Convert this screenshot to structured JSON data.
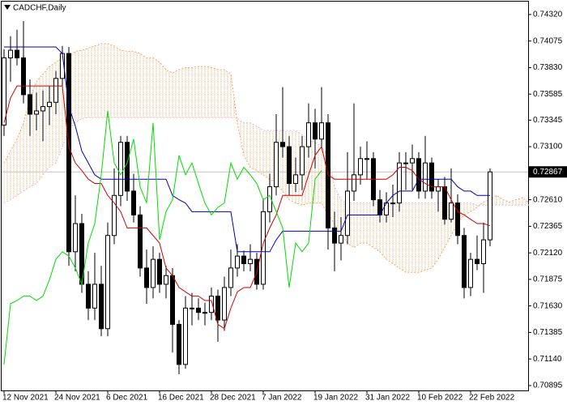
{
  "chart_data": {
    "type": "candlestick",
    "title": "CADCHF,Daily",
    "categories": [
      "12 Nov 2021",
      null,
      null,
      null,
      null,
      null,
      null,
      null,
      "24 Nov 2021",
      null,
      null,
      null,
      null,
      null,
      null,
      null,
      "6 Dec 2021",
      null,
      null,
      null,
      null,
      null,
      null,
      null,
      "16 Dec 2021",
      null,
      null,
      null,
      null,
      null,
      null,
      null,
      "28 Dec 2021",
      null,
      null,
      null,
      null,
      null,
      null,
      null,
      "7 Jan 2022",
      null,
      null,
      null,
      null,
      null,
      null,
      null,
      "19 Jan 2022",
      null,
      null,
      null,
      null,
      null,
      null,
      null,
      "31 Jan 2022",
      null,
      null,
      null,
      null,
      null,
      null,
      null,
      "10 Feb 2022",
      null,
      null,
      null,
      null,
      null,
      null,
      null,
      "22 Feb 2022",
      null,
      null,
      null,
      null,
      null,
      null,
      null,
      null,
      null
    ],
    "open": [
      0.733,
      0.7392,
      0.7399,
      0.7392,
      0.7358,
      0.734,
      0.7343,
      0.7347,
      0.7351,
      0.7373,
      0.7396,
      0.7213,
      0.7239,
      0.7183,
      0.7161,
      0.7183,
      0.7142,
      0.7228,
      0.7265,
      0.7314,
      0.7269,
      0.7247,
      0.7198,
      0.718,
      0.7206,
      0.7183,
      0.7191,
      0.7146,
      0.7109,
      0.7161,
      0.7161,
      0.7157,
      0.7157,
      0.7172,
      0.715,
      0.718,
      0.7198,
      0.7209,
      0.7202,
      0.7206,
      0.7183,
      0.725,
      0.7273,
      0.7314,
      0.731,
      0.7276,
      0.7284,
      0.731,
      0.7332,
      0.7317,
      0.7332,
      0.7235,
      0.7221,
      0.7228,
      0.7269,
      0.7284,
      0.7299,
      0.7299,
      0.7261,
      0.7247,
      0.7258,
      0.7258,
      0.7295,
      0.7295,
      0.7299,
      0.7269,
      0.7295,
      0.7269,
      0.7273,
      0.7243,
      0.7258,
      0.7228,
      0.718,
      0.7206,
      0.7202,
      0.7224,
      null,
      null,
      null,
      null,
      null,
      null
    ],
    "high": [
      0.74,
      0.7412,
      0.7418,
      0.7426,
      0.7372,
      0.736,
      0.7362,
      0.7366,
      0.738,
      0.7403,
      0.7402,
      0.7265,
      0.7248,
      0.7195,
      0.7212,
      0.72,
      0.724,
      0.729,
      0.732,
      0.732,
      0.7285,
      0.7255,
      0.7215,
      0.7218,
      0.7212,
      0.72,
      0.7198,
      0.715,
      0.7172,
      0.7175,
      0.717,
      0.7166,
      0.718,
      0.7178,
      0.719,
      0.7215,
      0.722,
      0.7214,
      0.722,
      0.7212,
      0.7262,
      0.7285,
      0.734,
      0.7365,
      0.732,
      0.73,
      0.732,
      0.735,
      0.7345,
      0.7365,
      0.734,
      0.725,
      0.7245,
      0.7305,
      0.735,
      0.731,
      0.7315,
      0.7305,
      0.727,
      0.7268,
      0.7275,
      0.7305,
      0.7305,
      0.7312,
      0.7305,
      0.732,
      0.73,
      0.728,
      0.7282,
      0.729,
      0.7266,
      0.7235,
      0.7212,
      0.7228,
      0.724,
      0.729,
      null,
      null,
      null,
      null,
      null,
      null
    ],
    "low": [
      0.732,
      0.737,
      0.7385,
      0.735,
      0.732,
      0.7325,
      0.7315,
      0.733,
      0.734,
      0.7365,
      0.72,
      0.7195,
      0.7175,
      0.715,
      0.715,
      0.7135,
      0.7135,
      0.722,
      0.7255,
      0.726,
      0.724,
      0.719,
      0.7165,
      0.717,
      0.7175,
      0.717,
      0.712,
      0.71,
      0.7105,
      0.7145,
      0.715,
      0.7145,
      0.715,
      0.713,
      0.714,
      0.7172,
      0.719,
      0.7195,
      0.7195,
      0.7178,
      0.7178,
      0.724,
      0.7265,
      0.73,
      0.7265,
      0.7268,
      0.727,
      0.73,
      0.729,
      0.731,
      0.7215,
      0.7195,
      0.7205,
      0.722,
      0.726,
      0.7275,
      0.728,
      0.7255,
      0.724,
      0.724,
      0.7245,
      0.725,
      0.727,
      0.727,
      0.7262,
      0.7262,
      0.7262,
      0.725,
      0.7238,
      0.724,
      0.722,
      0.717,
      0.7172,
      0.7196,
      0.7175,
      0.7218,
      null,
      null,
      null,
      null,
      null,
      null
    ],
    "close": [
      0.7392,
      0.7399,
      0.7392,
      0.7358,
      0.734,
      0.7343,
      0.7347,
      0.7351,
      0.7373,
      0.7396,
      0.7213,
      0.7239,
      0.7183,
      0.7161,
      0.7183,
      0.7142,
      0.7228,
      0.7265,
      0.7314,
      0.7269,
      0.7247,
      0.7198,
      0.718,
      0.7206,
      0.7183,
      0.7191,
      0.7146,
      0.7109,
      0.7161,
      0.7161,
      0.7157,
      0.7157,
      0.7172,
      0.715,
      0.718,
      0.7198,
      0.7209,
      0.7202,
      0.7206,
      0.7183,
      0.725,
      0.7273,
      0.7314,
      0.731,
      0.7276,
      0.7284,
      0.731,
      0.7332,
      0.7317,
      0.7332,
      0.7235,
      0.7221,
      0.7228,
      0.7269,
      0.7284,
      0.7299,
      0.7299,
      0.7261,
      0.7247,
      0.7258,
      0.7258,
      0.7295,
      0.7295,
      0.7299,
      0.7269,
      0.7295,
      0.7269,
      0.7273,
      0.7243,
      0.7258,
      0.7228,
      0.718,
      0.7206,
      0.7202,
      0.7224,
      0.72867,
      null,
      null,
      null,
      null,
      null,
      null
    ],
    "series": [
      {
        "color": "#cc0000",
        "values": [
          0.7332,
          0.7355,
          0.7366,
          0.7366,
          0.7366,
          0.7366,
          0.7366,
          0.7366,
          0.7366,
          0.7366,
          0.731,
          0.7295,
          0.7288,
          0.728,
          0.7276,
          0.7276,
          0.7265,
          0.7258,
          0.725,
          0.7235,
          0.7235,
          0.7235,
          0.7235,
          0.7228,
          0.7221,
          0.7198,
          0.7191,
          0.718,
          0.7176,
          0.7172,
          0.7172,
          0.7168,
          0.7168,
          0.7146,
          0.7142,
          0.7161,
          0.7176,
          0.718,
          0.718,
          0.7194,
          0.7221,
          0.7235,
          0.7247,
          0.7265,
          0.7265,
          0.7265,
          0.7265,
          0.7284,
          0.7302,
          0.731,
          0.7284,
          0.728,
          0.728,
          0.728,
          0.728,
          0.728,
          0.728,
          0.728,
          0.728,
          0.728,
          0.7284,
          0.7291,
          0.7291,
          0.7288,
          0.728,
          0.7276,
          0.7273,
          0.7273,
          0.7273,
          0.7261,
          0.725,
          0.7247,
          0.7243,
          0.7239,
          0.7239,
          0.7237,
          null,
          null,
          null,
          null,
          null,
          null
        ]
      },
      {
        "color": "#0000aa",
        "values": [
          0.7402,
          0.7402,
          0.7402,
          0.7402,
          0.7402,
          0.7402,
          0.7402,
          0.7402,
          0.7402,
          0.7396,
          0.7347,
          0.7329,
          0.7306,
          0.7295,
          0.7284,
          0.728,
          0.728,
          0.728,
          0.728,
          0.728,
          0.728,
          0.728,
          0.728,
          0.728,
          0.728,
          0.728,
          0.7265,
          0.7261,
          0.7258,
          0.725,
          0.725,
          0.725,
          0.725,
          0.725,
          0.725,
          0.725,
          0.7213,
          0.7213,
          0.7213,
          0.7213,
          0.7213,
          0.7213,
          0.7224,
          0.7232,
          0.7232,
          0.7232,
          0.7232,
          0.7232,
          0.7232,
          0.7232,
          0.7232,
          0.7232,
          0.7232,
          0.7247,
          0.7247,
          0.7247,
          0.7247,
          0.7247,
          0.7247,
          0.7258,
          0.7265,
          0.7269,
          0.7269,
          0.7269,
          0.728,
          0.728,
          0.728,
          0.728,
          0.728,
          0.728,
          0.7273,
          0.7269,
          0.7269,
          0.7265,
          0.7265,
          0.7265,
          null,
          null,
          null,
          null,
          null,
          null
        ]
      },
      {
        "color": "#00dd00",
        "values": [
          0.7109,
          0.7165,
          0.7168,
          0.7172,
          0.7172,
          0.7168,
          0.7172,
          0.7187,
          0.7206,
          0.7213,
          0.7209,
          0.7198,
          0.7183,
          0.7221,
          0.7239,
          0.7284,
          0.7343,
          0.7295,
          0.7284,
          0.7295,
          0.7317,
          0.7273,
          0.7258,
          0.7332,
          0.7224,
          0.725,
          0.7261,
          0.7302,
          0.7284,
          0.7295,
          0.7276,
          0.7258,
          0.7247,
          0.7254,
          0.7258,
          0.7295,
          0.728,
          0.7291,
          0.7284,
          0.7276,
          0.7261,
          0.7265,
          0.725,
          0.7235,
          0.718,
          0.7221,
          0.7213,
          0.7221,
          0.728,
          0.7288,
          null,
          null,
          null,
          null,
          null,
          null,
          null,
          null,
          null,
          null,
          null,
          null,
          null,
          null,
          null,
          null,
          null,
          null,
          null,
          null,
          null,
          null,
          null,
          null,
          null,
          null,
          null,
          null,
          null,
          null,
          null,
          null
        ]
      },
      {
        "color": "#f4a460",
        "dash": "2,2",
        "values": [
          0.7295,
          0.7306,
          0.7317,
          0.7332,
          0.7355,
          0.737,
          0.7377,
          0.7384,
          0.7388,
          0.7392,
          0.7393,
          0.7398,
          0.7399,
          0.7401,
          0.7403,
          0.7405,
          0.7405,
          0.7403,
          0.7399,
          0.7398,
          0.7398,
          0.7396,
          0.7392,
          0.7392,
          0.7388,
          0.7381,
          0.7378,
          0.7381,
          0.7383,
          0.7383,
          0.7384,
          0.7384,
          0.7383,
          0.7381,
          0.7381,
          0.7377,
          0.7332,
          0.7302,
          0.7291,
          0.7288,
          0.7284,
          0.728,
          0.7276,
          0.7269,
          0.7261,
          0.7258,
          0.7256,
          0.7258,
          0.7258,
          0.7258,
          0.7247,
          0.7239,
          0.7228,
          0.7221,
          0.7217,
          0.7221,
          0.7221,
          0.7217,
          0.7213,
          0.7206,
          0.7202,
          0.7198,
          0.7194,
          0.7194,
          0.7194,
          0.7196,
          0.7198,
          0.7206,
          0.7217,
          0.7228,
          0.7239,
          0.7247,
          0.725,
          0.7254,
          0.7259,
          0.7261,
          0.7265,
          0.7261,
          0.7259,
          0.7261,
          0.7263,
          0.7258
        ]
      },
      {
        "color": "#d8bfd8",
        "dash": "2,2",
        "values": [
          0.7258,
          0.7261,
          0.7265,
          0.7269,
          0.7273,
          0.7276,
          0.7284,
          0.7291,
          0.7295,
          0.731,
          0.7325,
          0.7332,
          0.7336,
          0.7337,
          0.7337,
          0.7337,
          0.7337,
          0.7337,
          0.7337,
          0.7337,
          0.7337,
          0.7337,
          0.7337,
          0.7337,
          0.7337,
          0.7337,
          0.7337,
          0.7337,
          0.7337,
          0.7337,
          0.7337,
          0.7337,
          0.7337,
          0.7337,
          0.7337,
          0.7337,
          0.7336,
          0.7332,
          0.7332,
          0.7329,
          0.7325,
          0.7325,
          0.7325,
          0.7325,
          0.7325,
          0.7325,
          0.7321,
          0.7317,
          0.7314,
          0.731,
          0.7302,
          0.7273,
          0.7261,
          0.7258,
          0.7258,
          0.7258,
          0.7258,
          0.7258,
          0.7258,
          0.7258,
          0.7258,
          0.7258,
          0.7258,
          0.7258,
          0.7258,
          0.7258,
          0.7258,
          0.7258,
          0.7258,
          0.7258,
          0.7258,
          0.7258,
          0.7258,
          0.7256,
          0.7256,
          0.7256,
          0.7256,
          0.7256,
          0.7256,
          0.7256,
          0.7256,
          0.7256
        ]
      }
    ],
    "cloud_color": "#f4a460",
    "last_price": 0.72867,
    "ylim": [
      0.7085,
      0.74439
    ],
    "yticks": [
      {
        "value": 0.7432,
        "label": "0.74320"
      },
      0.74075,
      {
        "value": 0.7383,
        "label": "0.73830"
      },
      0.73585,
      0.73345,
      {
        "value": 0.731,
        "label": "0.73100"
      },
      {
        "value": 0.7261,
        "label": "0.72610"
      },
      0.72365,
      {
        "value": 0.7212,
        "label": "0.72120"
      },
      0.71875,
      {
        "value": 0.7163,
        "label": "0.71630"
      },
      0.71385,
      {
        "value": 0.7114,
        "label": "0.71140"
      },
      0.70895
    ]
  }
}
